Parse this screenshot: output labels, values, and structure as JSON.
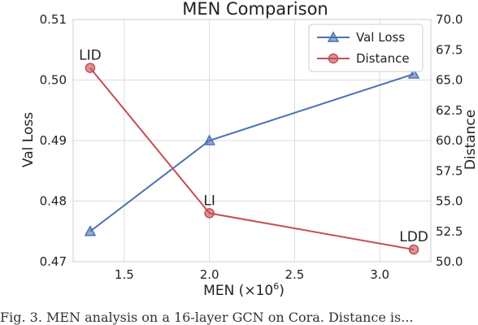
{
  "chart_data": {
    "type": "line",
    "title": "MEN Comparison",
    "xlabel_prefix": "MEN (×10",
    "xlabel_exp": "6",
    "xlabel_suffix": ")",
    "ylabel": "Val Loss",
    "y2label": "Distance",
    "xlim": [
      1.2,
      3.3
    ],
    "ylim": [
      0.47,
      0.51
    ],
    "y2lim": [
      50.0,
      70.0
    ],
    "x_ticks": [
      "1.5",
      "2.0",
      "2.5",
      "3.0"
    ],
    "y_ticks": [
      "0.47",
      "0.48",
      "0.49",
      "0.50",
      "0.51"
    ],
    "y2_ticks": [
      "50.0",
      "52.5",
      "55.0",
      "57.5",
      "60.0",
      "62.5",
      "65.0",
      "67.5",
      "70.0"
    ],
    "grid": true,
    "legend_position": "top-right",
    "series": [
      {
        "name": "Val Loss",
        "axis": "left",
        "color": "#4c72b0",
        "marker": "triangle",
        "x": [
          1.3,
          2.0,
          3.2
        ],
        "y": [
          0.475,
          0.49,
          0.501
        ]
      },
      {
        "name": "Distance",
        "axis": "right",
        "color": "#c44e52",
        "marker": "circle",
        "x": [
          1.3,
          2.0,
          3.2
        ],
        "y": [
          66.0,
          54.0,
          51.0
        ]
      }
    ],
    "annotations": [
      {
        "text": "LID",
        "x": 1.3,
        "y": 66.0,
        "axis": "right"
      },
      {
        "text": "LI",
        "x": 2.0,
        "y": 54.0,
        "axis": "right"
      },
      {
        "text": "LDD",
        "x": 3.2,
        "y": 51.0,
        "axis": "right"
      }
    ]
  },
  "caption": "Fig. 3.  MEN analysis on a 16-layer GCN on Cora. Distance is..."
}
